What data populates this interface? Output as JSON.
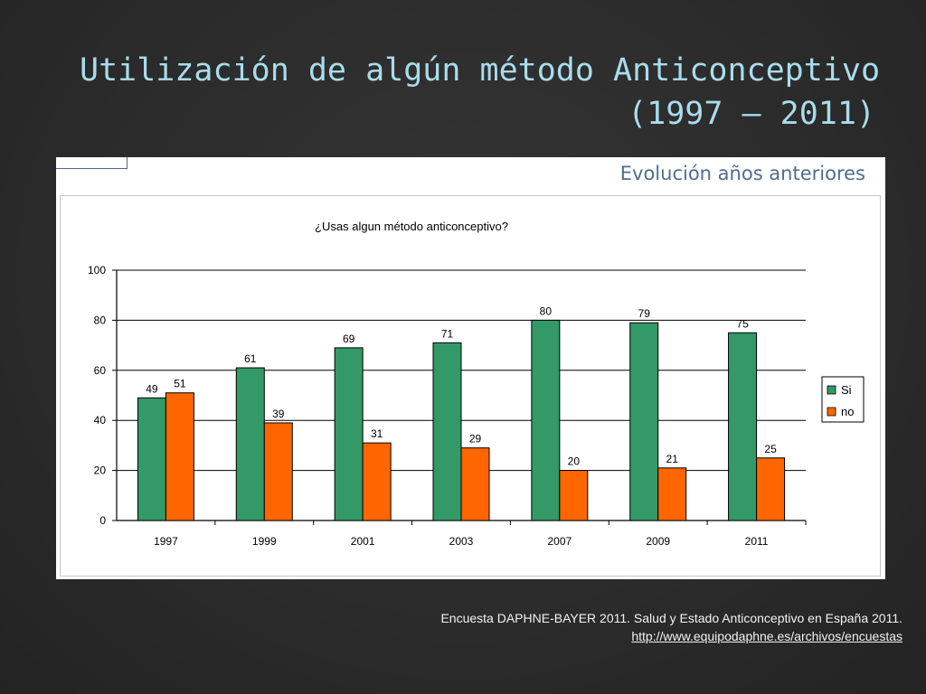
{
  "slide": {
    "title_line1": "Utilización de algún método Anticonceptivo",
    "title_line2": "(1997 – 2011)",
    "figure_heading": "Evolución años anteriores",
    "caption_text": "Encuesta DAPHNE-BAYER 2011. Salud y Estado Anticonceptivo en España 2011.",
    "caption_link": "http://www.equipodaphne.es/archivos/encuestas"
  },
  "chart_data": {
    "type": "bar",
    "title": "¿Usas algun método anticonceptivo?",
    "categories": [
      "1997",
      "1999",
      "2001",
      "2003",
      "2007",
      "2009",
      "2011"
    ],
    "series": [
      {
        "name": "Si",
        "values": [
          49,
          61,
          69,
          71,
          80,
          79,
          75
        ],
        "color": "#339966"
      },
      {
        "name": "no",
        "values": [
          51,
          39,
          31,
          29,
          20,
          21,
          25
        ],
        "color": "#ff6600"
      }
    ],
    "ylim": [
      0,
      100
    ],
    "yticks": [
      0,
      20,
      40,
      60,
      80,
      100
    ],
    "grid": true,
    "legend": "right",
    "data_labels": true
  }
}
